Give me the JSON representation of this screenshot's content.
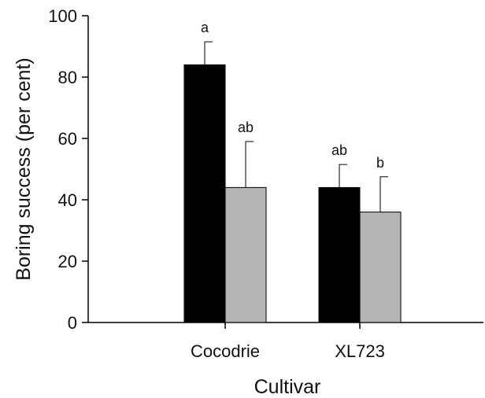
{
  "chart_data": {
    "type": "bar",
    "title": "",
    "xlabel": "Cultivar",
    "ylabel": "Boring success (per cent)",
    "ylim": [
      0,
      100
    ],
    "yticks": [
      "0",
      "20",
      "40",
      "60",
      "80",
      "100"
    ],
    "categories": [
      "Cocodrie",
      "XL723"
    ],
    "series": [
      {
        "color": "#000000",
        "values": [
          84,
          44
        ],
        "errors": [
          7.5,
          7.5
        ],
        "letters": [
          "a",
          "ab"
        ]
      },
      {
        "color": "#b4b4b4",
        "values": [
          44,
          36
        ],
        "errors": [
          15,
          11.5
        ],
        "letters": [
          "ab",
          "b"
        ]
      }
    ],
    "grid": false,
    "legend": "none"
  }
}
